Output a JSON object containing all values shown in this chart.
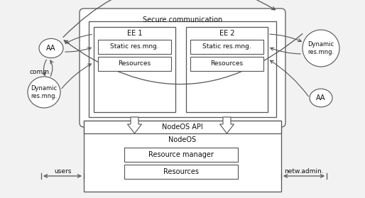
{
  "bg_color": "#f2f2f2",
  "box_color": "#ffffff",
  "border_color": "#555555",
  "text_color": "#111111",
  "secure_comm": "Secure communication",
  "ee1_label": "EE 1",
  "ee2_label": "EE 2",
  "static_label": "Static res.mng.",
  "resources_label": "Resources",
  "nodeos_api_label": "NodeOS API",
  "nodeos_label": "NodeOS",
  "res_mgr_label": "Resource manager",
  "res_label": "Resources",
  "aa_label": "AA",
  "dyn_label": "Dynamic\nres.mng.",
  "comm_label": "comm.",
  "users_label": "users",
  "netw_label": "netw.admin.",
  "figsize": [
    5.14,
    2.79
  ],
  "dpi": 100
}
